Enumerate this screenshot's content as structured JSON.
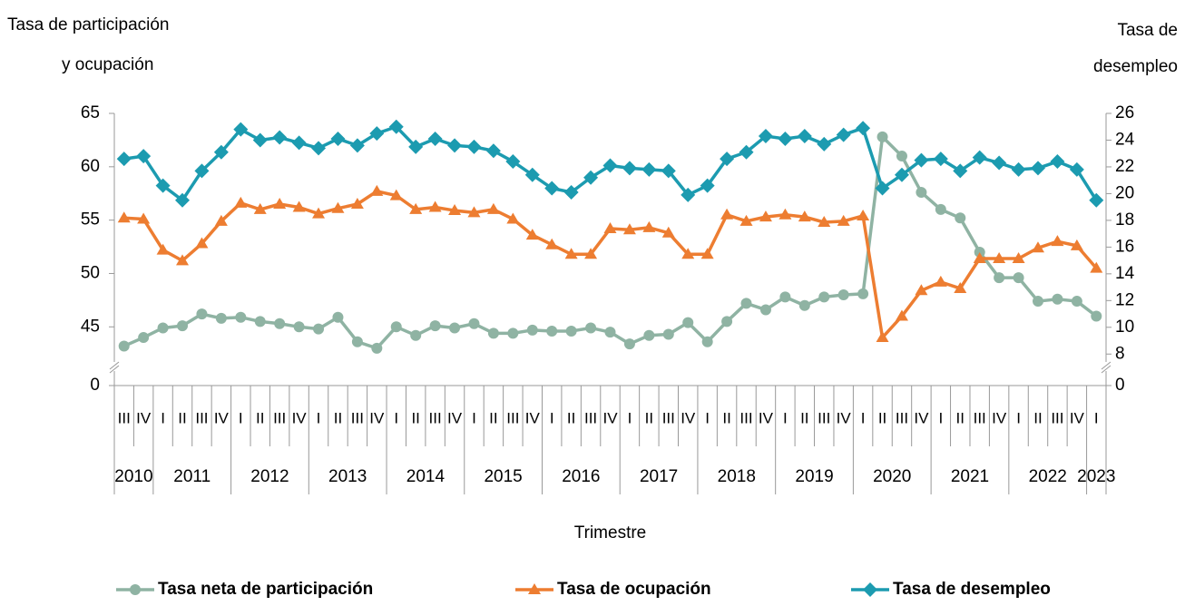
{
  "chart_data": {
    "type": "line",
    "ylabel": [
      "Tasa de participación",
      "y ocupación"
    ],
    "y2label": [
      "Tasa de",
      "desempleo"
    ],
    "xlabel": "Trimestre",
    "categories": [
      "III",
      "IV",
      "I",
      "II",
      "III",
      "IV",
      "I",
      "II",
      "III",
      "IV",
      "I",
      "II",
      "III",
      "IV",
      "I",
      "II",
      "III",
      "IV",
      "I",
      "II",
      "III",
      "IV",
      "I",
      "II",
      "III",
      "IV",
      "I",
      "II",
      "III",
      "IV",
      "I",
      "II",
      "III",
      "IV",
      "I",
      "II",
      "III",
      "IV",
      "I",
      "II",
      "III",
      "IV",
      "I",
      "II",
      "III",
      "IV",
      "I",
      "II",
      "III",
      "IV",
      "I"
    ],
    "category_years": [
      "2010",
      "2010",
      "2011",
      "2011",
      "2011",
      "2011",
      "2012",
      "2012",
      "2012",
      "2012",
      "2013",
      "2013",
      "2013",
      "2013",
      "2014",
      "2014",
      "2014",
      "2014",
      "2015",
      "2015",
      "2015",
      "2015",
      "2016",
      "2016",
      "2016",
      "2016",
      "2017",
      "2017",
      "2017",
      "2017",
      "2018",
      "2018",
      "2018",
      "2018",
      "2019",
      "2019",
      "2019",
      "2019",
      "2020",
      "2020",
      "2020",
      "2020",
      "2021",
      "2021",
      "2021",
      "2021",
      "2022",
      "2022",
      "2022",
      "2022",
      "2023"
    ],
    "ylim": [
      0,
      65
    ],
    "yticks": [
      0,
      45,
      50,
      55,
      60,
      65
    ],
    "ybreak": 41.2,
    "y2lim": [
      0,
      26
    ],
    "y2ticks": [
      0,
      8,
      10,
      12,
      14,
      16,
      18,
      20,
      22,
      24,
      26
    ],
    "y2break": 7,
    "legend": "bottom",
    "series": [
      {
        "name": "Tasa neta de participación",
        "color": "#8fb3a3",
        "marker": "circle",
        "values": [
          43.2,
          44.0,
          44.9,
          45.1,
          46.2,
          45.8,
          45.9,
          45.5,
          45.3,
          45.0,
          44.8,
          45.9,
          43.6,
          43.0,
          45.0,
          44.2,
          45.1,
          44.9,
          45.3,
          44.4,
          44.4,
          44.7,
          44.6,
          44.6,
          44.9,
          44.5,
          43.4,
          44.2,
          44.3,
          45.4,
          43.6,
          45.5,
          47.2,
          46.6,
          47.8,
          47.0,
          47.8,
          48.0,
          48.1,
          62.8,
          61.0,
          57.6,
          56.0,
          55.2,
          52.0,
          49.6,
          49.6,
          47.4,
          47.6,
          47.4,
          46.0
        ]
      },
      {
        "name": "Tasa de ocupación",
        "color": "#ed7d31",
        "marker": "triangle",
        "values": [
          55.2,
          55.1,
          52.2,
          51.2,
          52.8,
          54.9,
          56.6,
          56.0,
          56.5,
          56.2,
          55.6,
          56.1,
          56.5,
          57.7,
          57.3,
          56.0,
          56.2,
          55.9,
          55.7,
          56.0,
          55.1,
          53.6,
          52.7,
          51.8,
          51.8,
          54.2,
          54.1,
          54.3,
          53.8,
          51.8,
          51.8,
          55.5,
          54.9,
          55.3,
          55.5,
          55.3,
          54.8,
          54.9,
          55.4,
          44.0,
          46.0,
          48.4,
          49.2,
          48.6,
          51.4,
          51.4,
          51.4,
          52.4,
          53.0,
          52.6,
          50.5
        ]
      },
      {
        "name": "Tasa de desempleo",
        "color": "#1c9bb0",
        "marker": "diamond",
        "axis": "y2",
        "values": [
          22.6,
          22.8,
          20.6,
          19.5,
          21.7,
          23.1,
          24.8,
          24.0,
          24.2,
          23.8,
          23.4,
          24.1,
          23.6,
          24.5,
          25.0,
          23.5,
          24.1,
          23.6,
          23.5,
          23.2,
          22.4,
          21.4,
          20.4,
          20.1,
          21.2,
          22.1,
          21.9,
          21.8,
          21.7,
          19.9,
          20.6,
          22.6,
          23.1,
          24.3,
          24.1,
          24.3,
          23.7,
          24.4,
          24.9,
          20.4,
          21.4,
          22.5,
          22.6,
          21.7,
          22.7,
          22.3,
          21.8,
          21.9,
          22.4,
          21.8,
          19.5
        ]
      }
    ]
  }
}
